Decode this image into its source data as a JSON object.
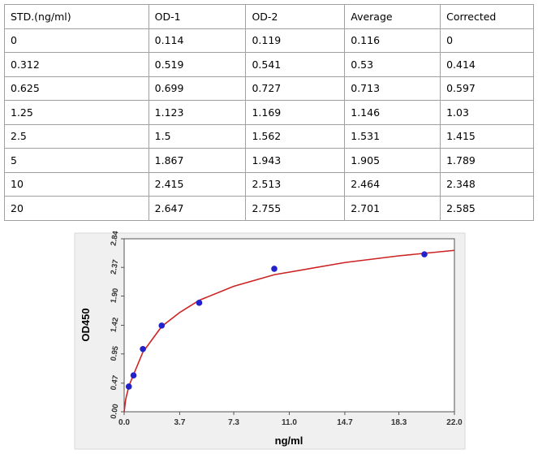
{
  "table": {
    "header": [
      "STD.(ng/ml)",
      "OD-1",
      "OD-2",
      "Average",
      "Corrected"
    ],
    "rows": [
      [
        "0",
        "0.114",
        "0.119",
        "0.116",
        "0"
      ],
      [
        "0.312",
        "0.519",
        "0.541",
        "0.53",
        "0.414"
      ],
      [
        "0.625",
        "0.699",
        "0.727",
        "0.713",
        "0.597"
      ],
      [
        "1.25",
        "1.123",
        "1.169",
        "1.146",
        "1.03"
      ],
      [
        "2.5",
        "1.5",
        "1.562",
        "1.531",
        "1.415"
      ],
      [
        "5",
        "1.867",
        "1.943",
        "1.905",
        "1.789"
      ],
      [
        "10",
        "2.415",
        "2.513",
        "2.464",
        "2.348"
      ],
      [
        "20",
        "2.647",
        "2.755",
        "2.701",
        "2.585"
      ]
    ]
  },
  "chart_data": {
    "type": "scatter",
    "x_label": "ng/ml",
    "y_label": "OD450",
    "x": [
      0.312,
      0.625,
      1.25,
      2.5,
      5,
      10,
      20
    ],
    "values": [
      0.414,
      0.597,
      1.03,
      1.415,
      1.789,
      2.348,
      2.585
    ],
    "color": "#2222cc",
    "fit": {
      "color": "#cc2222",
      "x": [
        0,
        0.1,
        0.312,
        0.625,
        1.25,
        2.5,
        3.7,
        5,
        7.3,
        10,
        14.7,
        18.3,
        22
      ],
      "values": [
        0,
        0.2,
        0.42,
        0.61,
        0.98,
        1.4,
        1.63,
        1.83,
        2.06,
        2.25,
        2.45,
        2.56,
        2.65
      ]
    },
    "xlim": [
      0,
      22
    ],
    "ylim": [
      0,
      2.84
    ],
    "xticks": [
      {
        "value": 0,
        "label": "0.0"
      },
      3.7,
      7.3,
      {
        "value": 11,
        "label": "11.0"
      },
      14.7,
      18.3,
      {
        "value": 22,
        "label": "22.0"
      }
    ],
    "yticks": [
      {
        "value": 0,
        "label": "0.00"
      },
      0.47,
      0.95,
      1.42,
      {
        "value": 1.9,
        "label": "1.90"
      },
      2.37,
      2.84
    ]
  }
}
